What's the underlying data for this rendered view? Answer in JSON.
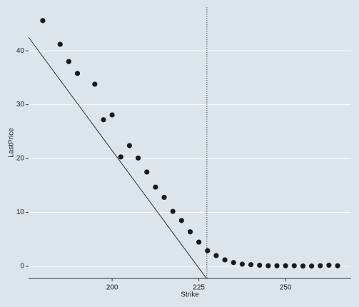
{
  "chart_data": {
    "type": "scatter",
    "x_label": "Strike",
    "y_label": "LastPrice",
    "x": [
      180,
      185,
      187.5,
      190,
      195,
      197.5,
      200,
      202.5,
      205,
      207.5,
      210,
      212.5,
      215,
      217.5,
      220,
      222.5,
      225,
      227.5,
      230,
      232.5,
      235,
      237.5,
      240,
      242.5,
      245,
      247.5,
      250,
      252.5,
      255,
      257.5,
      260,
      262.5,
      265
    ],
    "values": [
      45.6,
      41.2,
      38.0,
      35.8,
      33.8,
      27.2,
      28.1,
      20.3,
      22.4,
      20.1,
      17.5,
      14.7,
      12.8,
      10.2,
      8.5,
      6.4,
      4.5,
      2.9,
      2.0,
      1.2,
      0.7,
      0.4,
      0.3,
      0.2,
      0.1,
      0.1,
      0.1,
      0.1,
      0.05,
      0.05,
      0.1,
      0.2,
      0.1
    ],
    "color": "#1a1a1a",
    "reference_line": {
      "x": [
        175.9,
        227.2
      ],
      "y": [
        42.5,
        -2.25
      ]
    },
    "vline": 227.3,
    "xlim": [
      175.9,
      268.9
    ],
    "ylim": [
      -2.25,
      48.1
    ],
    "xticks": [
      200,
      225,
      250
    ],
    "yticks": [
      0,
      10,
      20,
      30,
      40
    ],
    "grid": true
  }
}
